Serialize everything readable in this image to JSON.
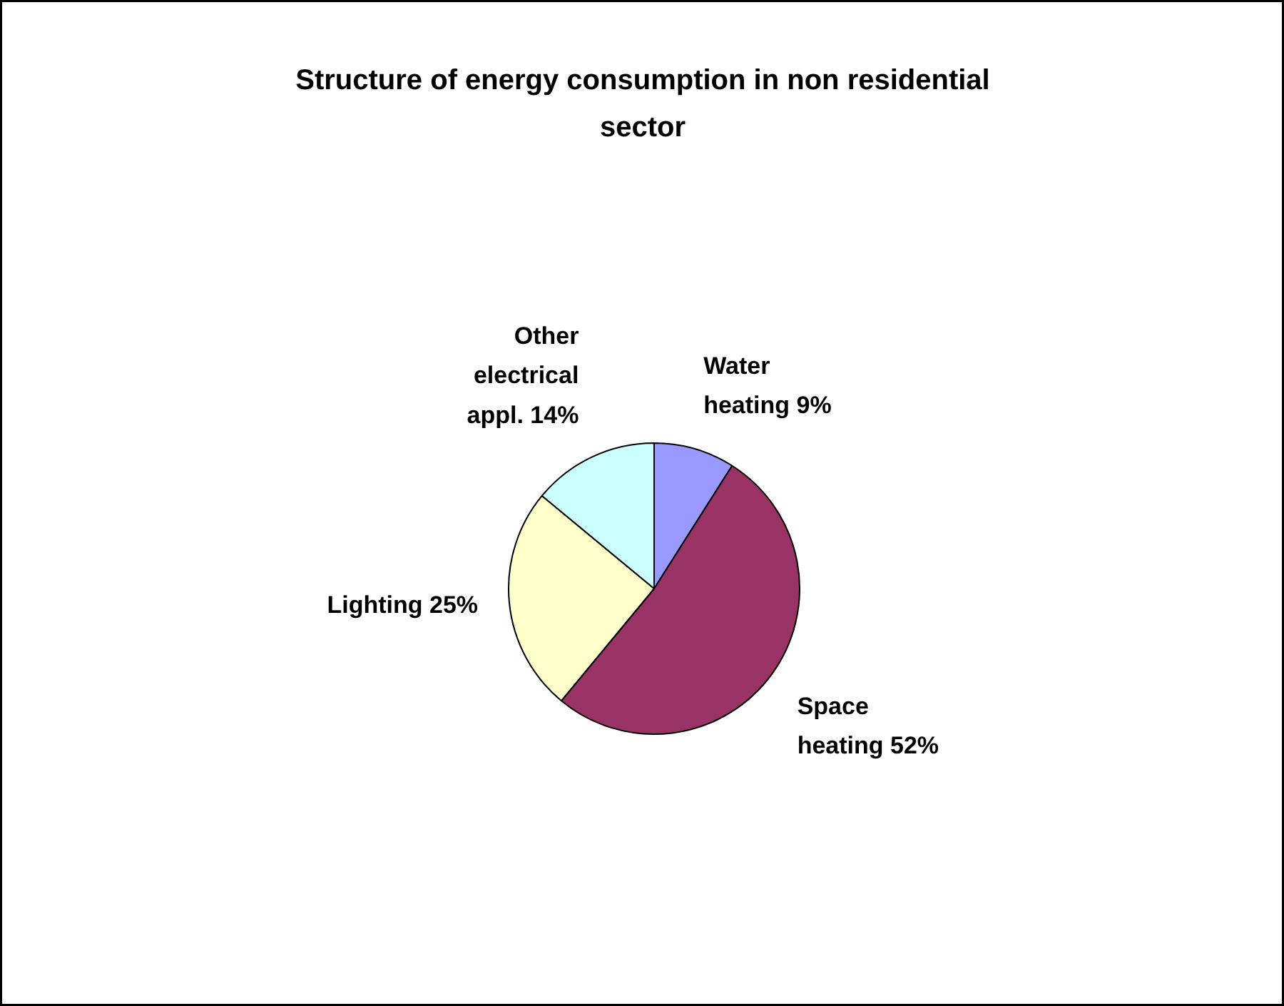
{
  "chart_data": {
    "type": "pie",
    "title": "Structure of energy consumption in non residential sector",
    "categories": [
      "Water heating",
      "Space heating",
      "Lighting",
      "Other electrical appl."
    ],
    "values": [
      9,
      52,
      25,
      14
    ],
    "value_labels": [
      "9%",
      "52%",
      "25%",
      "14%"
    ],
    "colors": [
      "#9999ff",
      "#993366",
      "#ffffcc",
      "#ccffff"
    ]
  }
}
